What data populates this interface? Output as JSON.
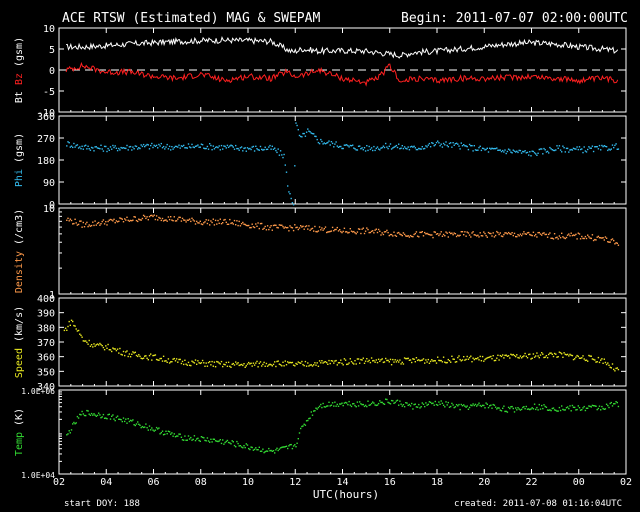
{
  "header": {
    "title": "ACE RTSW (Estimated) MAG & SWEPAM",
    "begin": "Begin: 2011-07-07 02:00:00UTC"
  },
  "footer": {
    "start_doy": "start DOY: 188",
    "created": "created: 2011-07-08 01:16:04UTC"
  },
  "colors": {
    "background": "#000000",
    "frame": "#ffffff",
    "bt": "#ffffff",
    "bz": "#ff2020",
    "phi": "#33bbee",
    "density": "#ff9a4a",
    "speed": "#e8e820",
    "temp": "#33dd33"
  },
  "chart_data": [
    {
      "type": "line",
      "name": "mag-btbz",
      "ylabel_parts": [
        {
          "text": "Bt",
          "color": "#ffffff"
        },
        {
          "text": "Bz",
          "color": "#ff2020"
        },
        {
          "text": "(gsm)",
          "color": "#ffffff"
        }
      ],
      "ylim": [
        -10,
        10
      ],
      "yticks": [
        -10,
        -5,
        0,
        5,
        10
      ],
      "zero_line": true,
      "xlabel": "UTC(hours)",
      "xlim": [
        0,
        24
      ],
      "xticks": [
        "02",
        "04",
        "06",
        "08",
        "10",
        "12",
        "14",
        "16",
        "18",
        "20",
        "22",
        "00",
        "02"
      ],
      "series": [
        {
          "name": "Bt",
          "color": "#ffffff",
          "x": [
            0.3,
            1,
            2,
            3,
            4,
            5,
            6,
            7,
            8,
            9,
            9.6,
            9.9,
            10.3,
            11,
            12,
            13,
            14,
            14.5,
            15,
            16,
            17,
            18,
            19,
            20,
            21,
            22,
            23,
            23.7
          ],
          "y": [
            5.5,
            5.5,
            5.8,
            6.2,
            6.5,
            6.8,
            7,
            7.1,
            7,
            6.8,
            5,
            4.3,
            5,
            4.5,
            4.6,
            4.5,
            3.8,
            3.5,
            4.2,
            4.5,
            5,
            5.6,
            6.2,
            6.5,
            6.2,
            5.5,
            5,
            4.5
          ]
        },
        {
          "name": "Bz",
          "color": "#ff2020",
          "x": [
            0.3,
            1,
            2,
            3,
            4,
            5,
            6,
            7,
            8,
            9,
            9.6,
            10,
            10.5,
            11,
            12,
            13,
            13.5,
            14,
            14.5,
            15,
            16,
            17,
            18,
            19,
            20,
            21,
            22,
            23,
            23.7
          ],
          "y": [
            0,
            1,
            -0.5,
            -0.5,
            -1.5,
            -2,
            -1,
            -2.5,
            -1.5,
            -2,
            -0.5,
            -1.5,
            -1,
            0,
            -2,
            -3,
            -2,
            1,
            -3,
            -2,
            -2.5,
            -2,
            -2,
            -1.8,
            -1.5,
            -2,
            -2.5,
            -2,
            -2.5
          ]
        }
      ]
    },
    {
      "type": "scatter",
      "name": "phi",
      "ylabel_parts": [
        {
          "text": "Phi",
          "color": "#33bbee"
        },
        {
          "text": "(gsm)",
          "color": "#ffffff"
        }
      ],
      "ylim": [
        0,
        360
      ],
      "yticks": [
        0,
        90,
        180,
        270,
        360
      ],
      "xlim": [
        0,
        24
      ],
      "series": [
        {
          "name": "Phi",
          "color": "#33bbee",
          "x": [
            0.3,
            1,
            2,
            3,
            4,
            5,
            6,
            7,
            8,
            9,
            9.5,
            9.7,
            9.9,
            10,
            10.2,
            10.5,
            11,
            12,
            13,
            14,
            15,
            16,
            17,
            18,
            19,
            20,
            21,
            22,
            23,
            23.7
          ],
          "y": [
            250,
            235,
            230,
            235,
            240,
            235,
            240,
            235,
            230,
            230,
            200,
            50,
            5,
            330,
            270,
            300,
            260,
            240,
            230,
            240,
            230,
            250,
            240,
            225,
            220,
            210,
            230,
            225,
            230,
            240
          ]
        }
      ]
    },
    {
      "type": "scatter",
      "name": "density",
      "ylabel_parts": [
        {
          "text": "Density",
          "color": "#ff9a4a"
        },
        {
          "text": "(/cm3)",
          "color": "#ffffff"
        }
      ],
      "yscale": "log",
      "ylim": [
        1,
        10
      ],
      "yticks": [
        1,
        10
      ],
      "xlim": [
        0,
        24
      ],
      "series": [
        {
          "name": "Density",
          "color": "#ff9a4a",
          "x": [
            0.3,
            1,
            2,
            3,
            4,
            5,
            6,
            7,
            8,
            9,
            10,
            11,
            12,
            13,
            14,
            15,
            16,
            17,
            18,
            19,
            20,
            21,
            22,
            23,
            23.7
          ],
          "y": [
            7.5,
            6.5,
            7,
            7.5,
            8,
            7.5,
            7,
            7,
            6.5,
            6,
            6,
            5.8,
            5.5,
            5.5,
            5.2,
            5,
            5,
            5,
            5,
            5,
            5,
            4.8,
            4.8,
            4.5,
            3.8
          ]
        }
      ]
    },
    {
      "type": "scatter",
      "name": "speed",
      "ylabel_parts": [
        {
          "text": "Speed",
          "color": "#e8e820"
        },
        {
          "text": "(km/s)",
          "color": "#ffffff"
        }
      ],
      "ylim": [
        340,
        400
      ],
      "yticks": [
        340,
        350,
        360,
        370,
        380,
        390,
        400
      ],
      "xlim": [
        0,
        24
      ],
      "series": [
        {
          "name": "Speed",
          "color": "#e8e820",
          "x": [
            0.2,
            0.5,
            1,
            1.5,
            2,
            3,
            4,
            5,
            6,
            7,
            8,
            9,
            10,
            11,
            12,
            13,
            14,
            15,
            16,
            17,
            18,
            19,
            20,
            21,
            22,
            23,
            23.7
          ],
          "y": [
            378,
            385,
            372,
            368,
            367,
            362,
            360,
            357,
            356,
            355,
            355,
            356,
            355,
            356,
            357,
            358,
            357,
            358,
            358,
            359,
            359,
            360,
            361,
            362,
            360,
            358,
            350
          ]
        }
      ]
    },
    {
      "type": "scatter",
      "name": "temp",
      "ylabel_parts": [
        {
          "text": "Temp",
          "color": "#33dd33"
        },
        {
          "text": "(K)",
          "color": "#ffffff"
        }
      ],
      "yscale": "log",
      "ylim": [
        10000,
        1000000
      ],
      "yticks": [
        10000,
        1000000
      ],
      "ytick_labels": [
        "1.0E+04",
        "1.0E+06"
      ],
      "xlim": [
        0,
        24
      ],
      "series": [
        {
          "name": "Temp",
          "color": "#33dd33",
          "x": [
            0.3,
            0.6,
            1,
            2,
            3,
            4,
            5,
            6,
            7,
            8,
            8.5,
            9,
            9.5,
            10,
            10.5,
            11,
            12,
            13,
            14,
            15,
            16,
            17,
            18,
            19,
            20,
            21,
            22,
            23,
            23.7
          ],
          "y": [
            80000,
            150000,
            300000,
            250000,
            180000,
            120000,
            80000,
            70000,
            60000,
            45000,
            40000,
            35000,
            40000,
            50000,
            200000,
            450000,
            500000,
            480000,
            550000,
            420000,
            500000,
            400000,
            450000,
            350000,
            420000,
            380000,
            380000,
            400000,
            500000
          ]
        }
      ]
    }
  ]
}
